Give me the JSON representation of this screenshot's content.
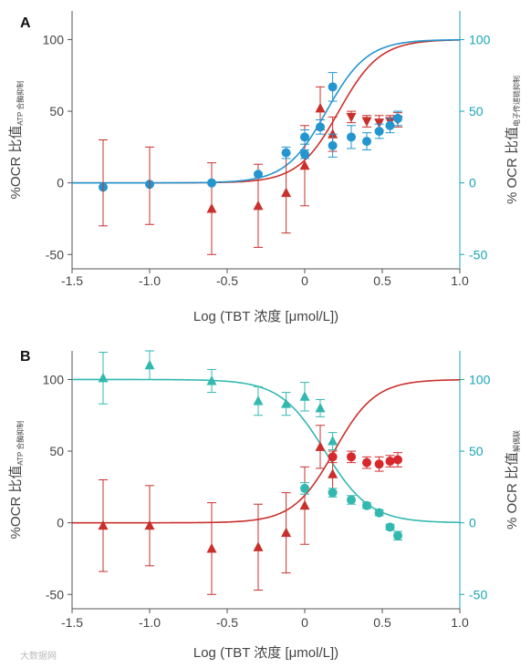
{
  "watermark": "大数据网",
  "chart_data": [
    {
      "panel": "A",
      "type": "scatter",
      "xlabel": "Log (TBT 浓度 [μmol/L])",
      "ylabel_left": "%OCR 比值",
      "ylabel_left_sub": "ATP 合酶抑制",
      "ylabel_right": "% OCR 比值",
      "ylabel_right_sub": "电子传递链抑制",
      "xlim": [
        -1.5,
        1.0
      ],
      "ylim": [
        -60,
        120
      ],
      "xticks": [
        "-1.5",
        "-1.0",
        "-0.5",
        "0",
        "0.5",
        "1.0"
      ],
      "yticks_left": [
        "-50",
        "0",
        "50",
        "100"
      ],
      "yticks_right": [
        "-50",
        "0",
        "50",
        "100"
      ],
      "series": [
        {
          "marker": "triangle-up",
          "color": "#c9302c",
          "points": [
            {
              "x": -0.6,
              "y": -18,
              "err": 32
            },
            {
              "x": -0.3,
              "y": -16,
              "err": 29
            },
            {
              "x": -0.12,
              "y": -7,
              "err": 28
            },
            {
              "x": 0.0,
              "y": 12,
              "err": 28
            },
            {
              "x": 0.1,
              "y": 52,
              "err": 15
            },
            {
              "x": 0.18,
              "y": 34,
              "err": 12
            }
          ]
        },
        {
          "marker": "triangle-down",
          "color": "#c9302c",
          "points": [
            {
              "x": 0.3,
              "y": 46,
              "err": 4
            },
            {
              "x": 0.4,
              "y": 43,
              "err": 4
            },
            {
              "x": 0.48,
              "y": 42,
              "err": 5
            },
            {
              "x": 0.55,
              "y": 43,
              "err": 4
            },
            {
              "x": 0.6,
              "y": 44,
              "err": 5
            }
          ]
        },
        {
          "marker": "circle",
          "color": "#2396cf",
          "points": [
            {
              "x": -1.3,
              "y": -3,
              "err": 0
            },
            {
              "x": -1.0,
              "y": -1,
              "err": 0
            },
            {
              "x": -0.6,
              "y": 0,
              "err": 0
            },
            {
              "x": -0.3,
              "y": 6,
              "err": 0
            },
            {
              "x": -0.12,
              "y": 21,
              "err": 4
            },
            {
              "x": 0.0,
              "y": 32,
              "err": 5
            },
            {
              "x": 0.0,
              "y": 20,
              "err": 3
            },
            {
              "x": 0.1,
              "y": 39,
              "err": 5
            },
            {
              "x": 0.18,
              "y": 67,
              "err": 10
            },
            {
              "x": 0.18,
              "y": 26,
              "err": 8
            },
            {
              "x": 0.3,
              "y": 32,
              "err": 8
            },
            {
              "x": 0.4,
              "y": 29,
              "err": 6
            },
            {
              "x": 0.48,
              "y": 36,
              "err": 5
            },
            {
              "x": 0.55,
              "y": 40,
              "err": 5
            },
            {
              "x": 0.6,
              "y": 45,
              "err": 5
            }
          ]
        },
        {
          "marker": "errorbar-only",
          "color": "#c9302c",
          "points": [
            {
              "x": -1.3,
              "y": 0,
              "err": 30
            },
            {
              "x": -1.0,
              "y": -2,
              "err": 27
            }
          ]
        }
      ],
      "curves": [
        {
          "color": "#c9302c",
          "bottom": 0,
          "top": 100,
          "ec50_log": 0.22,
          "hill": 3.3
        },
        {
          "color": "#2396cf",
          "bottom": 0,
          "top": 100,
          "ec50_log": 0.14,
          "hill": 3.3
        }
      ]
    },
    {
      "panel": "B",
      "type": "scatter",
      "xlabel": "Log (TBT 浓度 [μmol/L])",
      "ylabel_left": "%OCR 比值",
      "ylabel_left_sub": "ATP 合酶抑制",
      "ylabel_right": "% OCR 比值",
      "ylabel_right_sub": "解偶联",
      "xlim": [
        -1.5,
        1.0
      ],
      "ylim": [
        -60,
        120
      ],
      "xticks": [
        "-1.5",
        "-1.0",
        "-0.5",
        "0",
        "0.5",
        "1.0"
      ],
      "yticks_left": [
        "-50",
        "0",
        "50",
        "100"
      ],
      "yticks_right": [
        "-50",
        "0",
        "50",
        "100"
      ],
      "series": [
        {
          "marker": "triangle-up",
          "color": "#c9302c",
          "points": [
            {
              "x": -1.3,
              "y": -2,
              "err": 32
            },
            {
              "x": -1.0,
              "y": -2,
              "err": 28
            },
            {
              "x": -0.6,
              "y": -18,
              "err": 32
            },
            {
              "x": -0.3,
              "y": -17,
              "err": 30
            },
            {
              "x": -0.12,
              "y": -7,
              "err": 28
            },
            {
              "x": 0.0,
              "y": 12,
              "err": 27
            },
            {
              "x": 0.1,
              "y": 53,
              "err": 15
            },
            {
              "x": 0.18,
              "y": 34,
              "err": 12
            }
          ]
        },
        {
          "marker": "circle",
          "color": "#d7282c",
          "points": [
            {
              "x": 0.18,
              "y": 46,
              "err": 4
            },
            {
              "x": 0.3,
              "y": 46,
              "err": 4
            },
            {
              "x": 0.4,
              "y": 42,
              "err": 4
            },
            {
              "x": 0.48,
              "y": 41,
              "err": 5
            },
            {
              "x": 0.55,
              "y": 43,
              "err": 4
            },
            {
              "x": 0.6,
              "y": 44,
              "err": 5
            }
          ]
        },
        {
          "marker": "triangle-up",
          "color": "#33b8b0",
          "points": [
            {
              "x": -1.3,
              "y": 101,
              "err": 18
            },
            {
              "x": -1.0,
              "y": 110,
              "err": 10
            },
            {
              "x": -0.6,
              "y": 99,
              "err": 8
            },
            {
              "x": -0.3,
              "y": 85,
              "err": 10
            },
            {
              "x": -0.12,
              "y": 83,
              "err": 8
            },
            {
              "x": 0.0,
              "y": 88,
              "err": 10
            },
            {
              "x": 0.1,
              "y": 80,
              "err": 6
            },
            {
              "x": 0.18,
              "y": 57,
              "err": 6
            }
          ]
        },
        {
          "marker": "circle",
          "color": "#33b8b0",
          "points": [
            {
              "x": 0.0,
              "y": 24,
              "err": 4
            },
            {
              "x": 0.18,
              "y": 21,
              "err": 3
            },
            {
              "x": 0.3,
              "y": 16,
              "err": 3
            },
            {
              "x": 0.4,
              "y": 12,
              "err": 2
            },
            {
              "x": 0.48,
              "y": 7,
              "err": 2
            },
            {
              "x": 0.55,
              "y": -3,
              "err": 2
            },
            {
              "x": 0.6,
              "y": -9,
              "err": 3
            }
          ]
        }
      ],
      "curves": [
        {
          "color": "#c9302c",
          "bottom": 0,
          "top": 100,
          "ec50_log": 0.19,
          "hill": 3.3
        },
        {
          "color": "#33b8b0",
          "bottom": 100,
          "top": 0,
          "ec50_log": 0.13,
          "hill": 3.0
        }
      ]
    }
  ]
}
